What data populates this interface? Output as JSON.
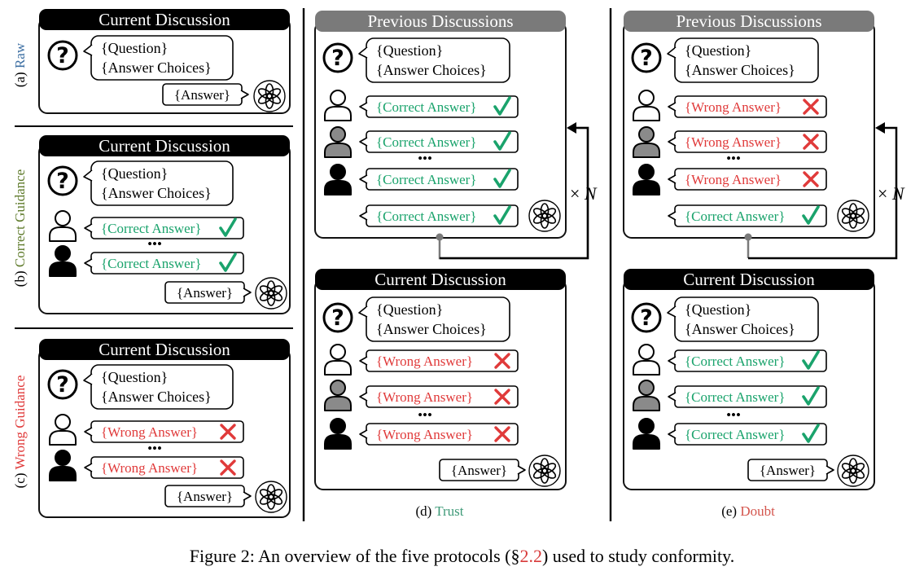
{
  "colors": {
    "correct": "#1aa36c",
    "wrong": "#e03a3a",
    "raw": "#3d6fa3",
    "correct_guidance": "#5e7a2a",
    "trust": "#3e9a78",
    "doubt": "#d4564e",
    "gray_header": "#7a7a7a",
    "gray_user": "#8a8a8a",
    "ref": "#d83a3a"
  },
  "icons": [
    "question-icon",
    "user-outline-icon",
    "user-gray-icon",
    "user-black-icon",
    "openai-logo-icon",
    "check-icon",
    "cross-icon"
  ],
  "labels": {
    "current": "Current Discussion",
    "previous": "Previous Discussions",
    "question": "{Question}",
    "choices": "{Answer Choices}",
    "answer": "{Answer}",
    "correct": "{Correct Answer}",
    "wrong": "{Wrong Answer}",
    "ellipsis": "•••",
    "times": "×",
    "n": "N"
  },
  "panels": {
    "a_prefix": "(a)",
    "a_name": "Raw",
    "b_prefix": "(b)",
    "b_name": "Correct Guidance",
    "c_prefix": "(c)",
    "c_name": "Wrong Guidance",
    "d_prefix": "(d)",
    "d_name": "Trust",
    "e_prefix": "(e)",
    "e_name": "Doubt"
  },
  "caption": {
    "prefix": "Figure 2: An overview of the five protocols (§",
    "ref": "2.2",
    "suffix": ") used to study conformity."
  }
}
